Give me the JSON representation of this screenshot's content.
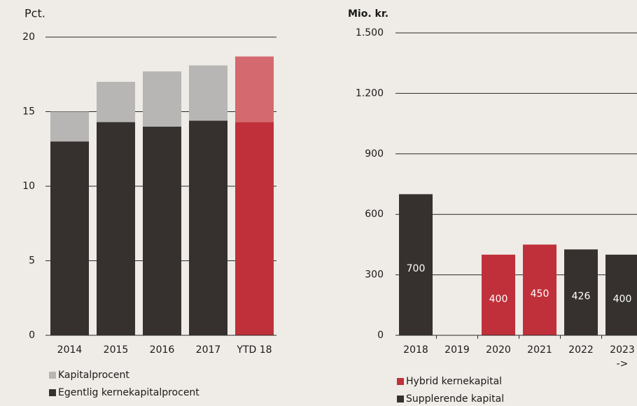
{
  "chart_data": [
    {
      "type": "stacked_bar",
      "y_label": "Pct.",
      "categories": [
        "2014",
        "2015",
        "2016",
        "2017",
        "YTD 18"
      ],
      "series": [
        {
          "name": "Egentlig kernekapitalprocent",
          "color": "#36312e",
          "colors": [
            "#36312e",
            "#36312e",
            "#36312e",
            "#36312e",
            "#c0303a"
          ],
          "values": [
            13,
            14.3,
            14,
            14.4,
            14.3
          ]
        },
        {
          "name": "Kapitalprocent",
          "color": "#b7b6b4",
          "colors": [
            "#b7b6b4",
            "#b7b6b4",
            "#b7b6b4",
            "#b7b6b4",
            "#d46a6f"
          ],
          "values": [
            2,
            2.7,
            3.7,
            3.7,
            4.4
          ]
        }
      ],
      "ylim": [
        0,
        20
      ],
      "yticks": [
        0,
        5,
        10,
        15,
        20
      ],
      "grid": true
    },
    {
      "type": "stacked_bar",
      "y_label": "Mio. kr.",
      "categories": [
        "2018",
        "2019",
        "2020",
        "2021",
        "2022",
        "2023 ->"
      ],
      "series": [
        {
          "name": "Hybrid kernekapital",
          "color": "#c0303a",
          "values": [
            null,
            null,
            400,
            450,
            null,
            null
          ]
        },
        {
          "name": "Supplerende kapital",
          "color": "#36312e",
          "values": [
            700,
            null,
            null,
            null,
            426,
            400
          ]
        }
      ],
      "ylim": [
        0,
        1500
      ],
      "yticks": [
        0,
        300,
        600,
        900,
        {
          "value": 1200,
          "label": "1.200"
        },
        {
          "value": 1500,
          "label": "1.500"
        }
      ],
      "grid": true,
      "data_labels": true
    }
  ]
}
